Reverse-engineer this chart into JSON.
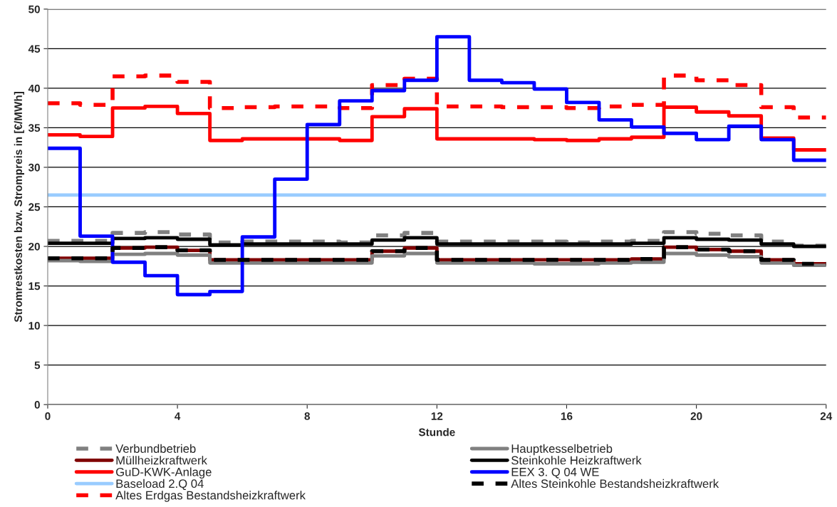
{
  "chart_data": {
    "type": "step",
    "xlabel": "Stunde",
    "ylabel": "Stromrestkosten bzw. Strompreis in [€/MWh]",
    "x": [
      0,
      1,
      2,
      3,
      4,
      5,
      6,
      7,
      8,
      9,
      10,
      11,
      12,
      13,
      14,
      15,
      16,
      17,
      18,
      19,
      20,
      21,
      22,
      23,
      24
    ],
    "xlim": [
      0,
      24
    ],
    "xticks": [
      0,
      4,
      8,
      12,
      16,
      20,
      24
    ],
    "ylim": [
      0,
      50
    ],
    "yticks": [
      0,
      5,
      10,
      15,
      20,
      25,
      30,
      35,
      40,
      45,
      50
    ],
    "grid": "y",
    "legend": "bottom",
    "series": [
      {
        "name": "Verbundbetrieb",
        "color": "#808080",
        "line_style": "dashed",
        "values": [
          20.7,
          20.7,
          21.7,
          21.8,
          21.5,
          20.5,
          20.6,
          20.6,
          20.6,
          20.5,
          21.4,
          21.7,
          20.6,
          20.6,
          20.6,
          20.6,
          20.5,
          20.6,
          20.7,
          21.8,
          21.6,
          21.4,
          20.6,
          20.1,
          20.1
        ]
      },
      {
        "name": "Müllheizkraftwerk",
        "color": "#800000",
        "line_style": "solid",
        "values": [
          18.5,
          18.5,
          19.8,
          19.9,
          19.5,
          18.3,
          18.3,
          18.3,
          18.3,
          18.3,
          19.4,
          19.8,
          18.3,
          18.3,
          18.3,
          18.3,
          18.3,
          18.3,
          18.4,
          19.9,
          19.6,
          19.4,
          18.3,
          17.8,
          17.8
        ]
      },
      {
        "name": "GuD-KWK-Anlage",
        "color": "#ff0000",
        "line_style": "solid",
        "values": [
          34.1,
          33.9,
          37.5,
          37.7,
          36.8,
          33.4,
          33.6,
          33.6,
          33.6,
          33.4,
          36.4,
          37.4,
          33.6,
          33.6,
          33.6,
          33.5,
          33.4,
          33.6,
          33.8,
          37.6,
          37.0,
          36.5,
          33.7,
          32.2,
          32.2
        ]
      },
      {
        "name": "Baseload 2.Q 04",
        "color": "#99ccff",
        "line_style": "solid",
        "values": [
          26.5,
          26.5,
          26.5,
          26.5,
          26.5,
          26.5,
          26.5,
          26.5,
          26.5,
          26.5,
          26.5,
          26.5,
          26.5,
          26.5,
          26.5,
          26.5,
          26.5,
          26.5,
          26.5,
          26.5,
          26.5,
          26.5,
          26.5,
          26.5,
          26.5
        ]
      },
      {
        "name": "Altes Erdgas Bestandsheizkraftwerk",
        "color": "#ff0000",
        "line_style": "dashed",
        "values": [
          38.1,
          37.9,
          41.5,
          41.6,
          40.8,
          37.5,
          37.6,
          37.7,
          37.7,
          37.5,
          40.4,
          41.2,
          37.7,
          37.7,
          37.6,
          37.6,
          37.5,
          37.7,
          37.9,
          41.6,
          41.0,
          40.4,
          37.6,
          36.3,
          36.3
        ]
      },
      {
        "name": "Hauptkesselbetrieb",
        "color": "#808080",
        "line_style": "solid",
        "values": [
          18.2,
          18.1,
          19.0,
          19.1,
          18.9,
          17.9,
          17.9,
          17.9,
          17.9,
          17.9,
          18.8,
          19.1,
          17.9,
          17.9,
          17.9,
          17.8,
          17.8,
          17.9,
          18.0,
          19.1,
          18.9,
          18.7,
          17.9,
          17.6,
          17.6
        ]
      },
      {
        "name": "Steinkohle Heizkraftwerk",
        "color": "#000000",
        "line_style": "solid",
        "values": [
          20.4,
          20.4,
          21.0,
          21.1,
          20.9,
          20.2,
          20.3,
          20.3,
          20.3,
          20.3,
          20.8,
          21.1,
          20.3,
          20.3,
          20.3,
          20.3,
          20.3,
          20.3,
          20.4,
          21.1,
          20.9,
          20.8,
          20.3,
          20.0,
          20.0
        ]
      },
      {
        "name": "EEX 3. Q 04 WE",
        "color": "#0000ff",
        "line_style": "solid",
        "values": [
          32.4,
          21.3,
          18.0,
          16.3,
          13.9,
          14.3,
          21.2,
          28.5,
          35.4,
          38.4,
          39.7,
          41.0,
          46.5,
          41.0,
          40.7,
          39.9,
          38.2,
          36.0,
          35.1,
          34.3,
          33.5,
          35.2,
          33.5,
          30.9,
          30.9
        ]
      },
      {
        "name": "Altes Steinkohle Bestandsheizkraftwerk",
        "color": "#000000",
        "line_style": "dashed",
        "values": [
          18.5,
          18.5,
          19.8,
          19.9,
          19.5,
          18.3,
          18.3,
          18.3,
          18.3,
          18.3,
          19.4,
          19.8,
          18.3,
          18.3,
          18.3,
          18.3,
          18.3,
          18.3,
          18.4,
          19.9,
          19.6,
          19.4,
          18.3,
          17.8,
          17.8
        ]
      }
    ]
  }
}
